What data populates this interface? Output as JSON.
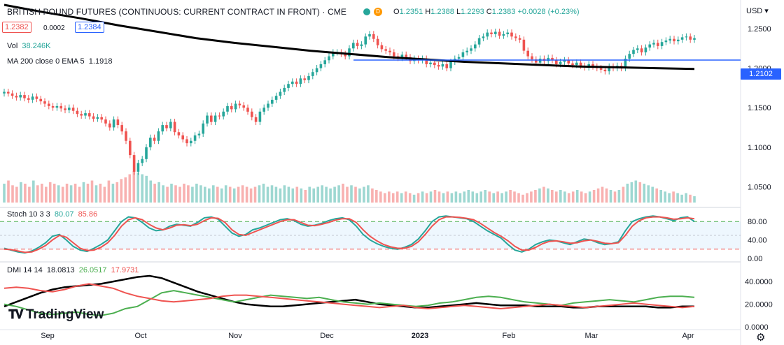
{
  "header": {
    "title": "BRITISH POUND FUTURES (CONTINUOUS: CURRENT CONTRACT IN FRONT) · CME",
    "badge_d": "D",
    "ohlc": {
      "o_label": "O",
      "o": "1.2351",
      "h_label": "H",
      "h": "1.2388",
      "l_label": "L",
      "l": "1.2293",
      "c_label": "C",
      "c": "1.2383",
      "change": "+0.0028 (+0.23%)"
    },
    "bid": "1.2382",
    "spread": "0.0002",
    "ask": "1.2384",
    "currency": "USD"
  },
  "legends": {
    "vol_label": "Vol",
    "vol_value": "38.246K",
    "ma_label": "MA 200 close 0 EMA 5",
    "ma_value": "1.1918",
    "stoch_label": "Stoch 10 3 3",
    "stoch_k": "80.07",
    "stoch_d": "85.86",
    "dmi_label": "DMI 14 14",
    "dmi_adx": "18.0813",
    "dmi_plus": "26.0517",
    "dmi_minus": "17.9731"
  },
  "hline_value": "1.2102",
  "logo_text": "TradingView",
  "colors": {
    "up": "#26a69a",
    "down": "#ef5350",
    "ma": "#000000",
    "hline": "#2962ff",
    "stochK": "#26a69a",
    "stochD": "#ef5350",
    "adx": "#000000",
    "plusDI": "#4caf50",
    "minusDI": "#ef5350"
  },
  "chart_data": [
    {
      "type": "candlestick",
      "title": "BRITISH POUND FUTURES (CONTINUOUS: CURRENT CONTRACT IN FRONT) · CME",
      "x_labels": [
        "Sep",
        "Oct",
        "Nov",
        "Dec",
        "2023",
        "Feb",
        "Mar",
        "Apr"
      ],
      "y_ticks": [
        "1.2500",
        "1.2000",
        "1.1500",
        "1.1000",
        "1.0500"
      ],
      "ylim": [
        1.03,
        1.265
      ],
      "close": [
        1.17,
        1.168,
        1.165,
        1.163,
        1.166,
        1.162,
        1.16,
        1.164,
        1.161,
        1.158,
        1.155,
        1.152,
        1.15,
        1.152,
        1.149,
        1.147,
        1.15,
        1.146,
        1.142,
        1.14,
        1.143,
        1.139,
        1.136,
        1.138,
        1.135,
        1.13,
        1.125,
        1.135,
        1.128,
        1.12,
        1.108,
        1.09,
        1.069,
        1.08,
        1.085,
        1.1,
        1.112,
        1.108,
        1.12,
        1.128,
        1.124,
        1.132,
        1.119,
        1.115,
        1.11,
        1.105,
        1.108,
        1.115,
        1.117,
        1.13,
        1.14,
        1.132,
        1.14,
        1.139,
        1.145,
        1.152,
        1.148,
        1.155,
        1.153,
        1.15,
        1.145,
        1.138,
        1.132,
        1.145,
        1.15,
        1.155,
        1.16,
        1.165,
        1.17,
        1.175,
        1.18,
        1.183,
        1.18,
        1.187,
        1.185,
        1.19,
        1.195,
        1.2,
        1.205,
        1.21,
        1.215,
        1.22,
        1.22,
        1.218,
        1.215,
        1.225,
        1.232,
        1.228,
        1.23,
        1.24,
        1.243,
        1.237,
        1.229,
        1.224,
        1.222,
        1.22,
        1.215,
        1.213,
        1.217,
        1.214,
        1.209,
        1.212,
        1.21,
        1.212,
        1.205,
        1.207,
        1.204,
        1.202,
        1.205,
        1.2,
        1.208,
        1.212,
        1.214,
        1.22,
        1.222,
        1.225,
        1.23,
        1.238,
        1.24,
        1.245,
        1.243,
        1.246,
        1.241,
        1.243,
        1.245,
        1.24,
        1.238,
        1.236,
        1.222,
        1.215,
        1.211,
        1.207,
        1.212,
        1.209,
        1.213,
        1.21,
        1.205,
        1.208,
        1.21,
        1.206,
        1.204,
        1.207,
        1.203,
        1.201,
        1.205,
        1.202,
        1.2,
        1.198,
        1.196,
        1.202,
        1.2,
        1.203,
        1.2,
        1.212,
        1.218,
        1.223,
        1.225,
        1.22,
        1.226,
        1.23,
        1.232,
        1.228,
        1.233,
        1.235,
        1.237,
        1.234,
        1.236,
        1.239,
        1.24,
        1.236,
        1.238
      ],
      "ma_ema": [
        1.28,
        1.271,
        1.263,
        1.254,
        1.246,
        1.238,
        1.232,
        1.227,
        1.222,
        1.218,
        1.214,
        1.211,
        1.208,
        1.206,
        1.204,
        1.202,
        1.201,
        1.2,
        1.199
      ],
      "hline": 1.2102,
      "volume_relative": [
        0.6,
        0.7,
        0.55,
        0.5,
        0.65,
        0.6,
        0.5,
        0.7,
        0.55,
        0.6,
        0.5,
        0.65,
        0.6,
        0.55,
        0.5,
        0.6,
        0.55,
        0.6,
        0.5,
        0.65,
        0.6,
        0.7,
        0.55,
        0.6,
        0.5,
        0.7,
        0.6,
        0.65,
        0.75,
        0.8,
        0.9,
        1.0,
        0.95,
        0.9,
        0.85,
        0.7,
        0.6,
        0.65,
        0.55,
        0.5,
        0.6,
        0.55,
        0.5,
        0.6,
        0.55,
        0.5,
        0.6,
        0.55,
        0.5,
        0.45,
        0.55,
        0.5,
        0.45,
        0.55,
        0.5,
        0.45,
        0.5,
        0.55,
        0.5,
        0.45,
        0.5,
        0.55,
        0.6,
        0.5,
        0.55,
        0.5,
        0.45,
        0.55,
        0.5,
        0.45,
        0.5,
        0.45,
        0.4,
        0.5,
        0.45,
        0.5,
        0.55,
        0.5,
        0.45,
        0.5,
        0.55,
        0.6,
        0.5,
        0.55,
        0.5,
        0.45,
        0.5,
        0.55,
        0.45,
        0.4,
        0.35,
        0.3,
        0.35,
        0.3,
        0.35,
        0.3,
        0.35,
        0.3,
        0.25,
        0.3,
        0.35,
        0.3,
        0.35,
        0.4,
        0.35,
        0.3,
        0.35,
        0.3,
        0.35,
        0.3,
        0.35,
        0.4,
        0.35,
        0.3,
        0.35,
        0.4,
        0.35,
        0.3,
        0.35,
        0.3,
        0.35,
        0.4,
        0.35,
        0.3,
        0.25,
        0.3,
        0.35,
        0.4,
        0.45,
        0.5,
        0.45,
        0.4,
        0.35,
        0.4,
        0.35,
        0.3,
        0.35,
        0.4,
        0.35,
        0.3,
        0.35,
        0.4,
        0.45,
        0.5,
        0.45,
        0.4,
        0.35,
        0.4,
        0.5,
        0.6,
        0.65,
        0.7,
        0.65,
        0.6,
        0.55,
        0.5,
        0.45,
        0.4,
        0.35,
        0.3,
        0.35,
        0.3,
        0.25,
        0.3,
        0.25,
        0.2
      ]
    },
    {
      "type": "line",
      "title": "Stoch 10 3 3",
      "y_ticks": [
        "80.00",
        "40.00",
        "0.00"
      ],
      "ylim": [
        0,
        100
      ],
      "levels": [
        80,
        50,
        20
      ],
      "series": [
        {
          "name": "80.07",
          "values": [
            22,
            18,
            14,
            12,
            16,
            24,
            34,
            48,
            52,
            40,
            26,
            18,
            15,
            22,
            30,
            40,
            60,
            80,
            90,
            88,
            78,
            66,
            60,
            62,
            70,
            74,
            72,
            70,
            78,
            88,
            90,
            85,
            70,
            55,
            48,
            52,
            62,
            66,
            72,
            78,
            84,
            86,
            82,
            74,
            70,
            72,
            76,
            82,
            86,
            88,
            84,
            70,
            52,
            40,
            32,
            26,
            22,
            20,
            24,
            30,
            42,
            60,
            80,
            90,
            92,
            90,
            88,
            86,
            80,
            70,
            60,
            52,
            44,
            30,
            18,
            14,
            20,
            30,
            36,
            40,
            38,
            34,
            30,
            36,
            42,
            40,
            34,
            30,
            32,
            36,
            60,
            80,
            86,
            90,
            92,
            90,
            86,
            82,
            88,
            90,
            80
          ]
        },
        {
          "name": "85.86",
          "values": [
            20,
            19,
            16,
            13,
            14,
            20,
            28,
            40,
            50,
            46,
            34,
            22,
            17,
            18,
            24,
            34,
            50,
            70,
            84,
            88,
            84,
            74,
            66,
            62,
            66,
            72,
            73,
            71,
            74,
            82,
            88,
            87,
            78,
            62,
            52,
            50,
            56,
            62,
            68,
            74,
            80,
            84,
            84,
            78,
            72,
            71,
            74,
            78,
            83,
            86,
            86,
            78,
            62,
            48,
            38,
            30,
            25,
            22,
            22,
            26,
            36,
            52,
            70,
            84,
            90,
            90,
            89,
            87,
            84,
            76,
            66,
            56,
            48,
            38,
            26,
            18,
            18,
            24,
            32,
            37,
            38,
            36,
            33,
            34,
            38,
            40,
            37,
            33,
            32,
            34,
            50,
            70,
            82,
            88,
            90,
            90,
            88,
            85,
            86,
            88,
            86
          ]
        }
      ]
    },
    {
      "type": "line",
      "title": "DMI 14 14",
      "y_ticks": [
        "40.0000",
        "20.0000",
        "0.0000"
      ],
      "ylim": [
        0,
        45
      ],
      "series": [
        {
          "name": "18.0813",
          "values": [
            18,
            22,
            26,
            30,
            33,
            35,
            36,
            37,
            38,
            40,
            42,
            44,
            45,
            43,
            39,
            35,
            31,
            28,
            25,
            22,
            20,
            19,
            18,
            18,
            19,
            20,
            21,
            22,
            23,
            24,
            22,
            20,
            19,
            18,
            17,
            17,
            18,
            19,
            20,
            21,
            20,
            19,
            19,
            19,
            18,
            18,
            18,
            17,
            17,
            18,
            18,
            18,
            18,
            18,
            17,
            17,
            18,
            18
          ]
        },
        {
          "name": "26.0517",
          "values": [
            20,
            18,
            15,
            12,
            11,
            12,
            13,
            11,
            10,
            12,
            16,
            18,
            24,
            30,
            32,
            30,
            28,
            26,
            24,
            22,
            24,
            26,
            28,
            27,
            26,
            25,
            26,
            24,
            22,
            21,
            20,
            21,
            20,
            19,
            18,
            19,
            21,
            22,
            24,
            26,
            27,
            26,
            24,
            22,
            21,
            20,
            19,
            21,
            22,
            23,
            24,
            23,
            22,
            24,
            26,
            27,
            27,
            26
          ]
        },
        {
          "name": "17.9731",
          "values": [
            34,
            35,
            34,
            32,
            31,
            33,
            36,
            38,
            36,
            34,
            30,
            27,
            25,
            23,
            22,
            23,
            24,
            25,
            27,
            28,
            28,
            27,
            26,
            25,
            24,
            23,
            22,
            21,
            20,
            19,
            18,
            17,
            18,
            19,
            17,
            16,
            17,
            18,
            19,
            18,
            17,
            16,
            17,
            18,
            19,
            20,
            19,
            18,
            17,
            18,
            19,
            20,
            21,
            20,
            19,
            18,
            17,
            18
          ]
        }
      ]
    }
  ]
}
